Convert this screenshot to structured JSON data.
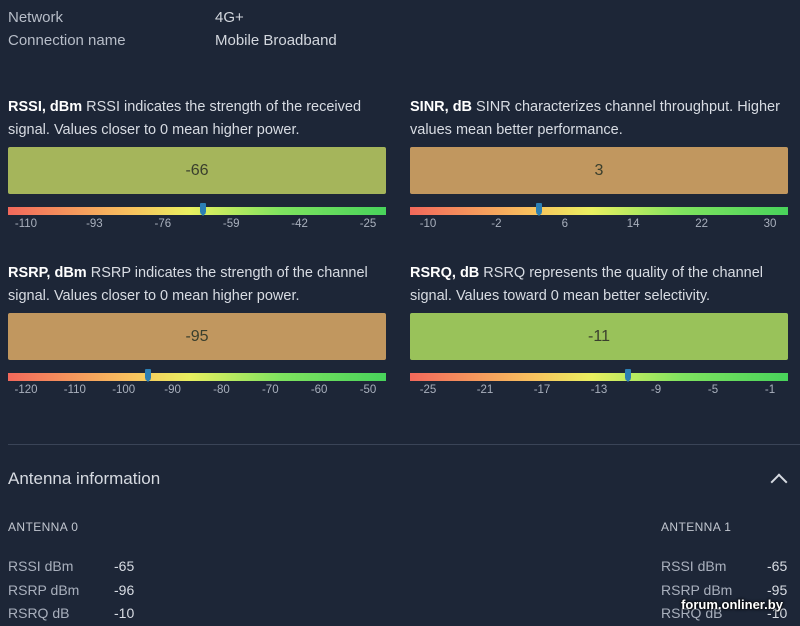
{
  "info": [
    {
      "label": "Network",
      "value": "4G+"
    },
    {
      "label": "Connection name",
      "value": "Mobile Broadband"
    }
  ],
  "metrics": [
    {
      "name": "RSSI, dBm",
      "description": " RSSI indicates the strength of the received signal. Values closer to 0 mean higher power.",
      "value": "-66",
      "box_color": "#a5b55b",
      "ticks": [
        "-110",
        "-93",
        "-76",
        "-59",
        "-42",
        "-25"
      ],
      "scale_min": -110,
      "scale_max": -25,
      "level": -66
    },
    {
      "name": "SINR, dB",
      "description": " SINR characterizes channel throughput. Higher values mean better performance.",
      "value": "3",
      "box_color": "#c1975f",
      "ticks": [
        "-10",
        "-2",
        "6",
        "14",
        "22",
        "30"
      ],
      "scale_min": -10,
      "scale_max": 30,
      "level": 3
    },
    {
      "name": "RSRP, dBm",
      "description": " RSRP indicates the strength of the channel signal. Values closer to 0 mean higher power.",
      "value": "-95",
      "box_color": "#c1975f",
      "ticks": [
        "-120",
        "-110",
        "-100",
        "-90",
        "-80",
        "-70",
        "-60",
        "-50"
      ],
      "scale_min": -120,
      "scale_max": -50,
      "level": -95
    },
    {
      "name": "RSRQ, dB",
      "description": " RSRQ represents the quality of the channel signal. Values toward 0 mean better selectivity.",
      "value": "-11",
      "box_color": "#99c25a",
      "ticks": [
        "-25",
        "-21",
        "-17",
        "-13",
        "-9",
        "-5",
        "-1"
      ],
      "scale_min": -25,
      "scale_max": -1,
      "level": -11
    }
  ],
  "antenna_section": {
    "title": "Antenna information",
    "collapse_icon": "chevron-up-icon"
  },
  "antennas": [
    {
      "title": "ANTENNA 0",
      "rows": [
        {
          "label": "RSSI dBm",
          "value": "-65"
        },
        {
          "label": "RSRP dBm",
          "value": "-96"
        },
        {
          "label": "RSRQ dB",
          "value": "-10"
        }
      ]
    },
    {
      "title": "ANTENNA 1",
      "rows": [
        {
          "label": "RSSI dBm",
          "value": "-65"
        },
        {
          "label": "RSRP dBm",
          "value": "-95"
        },
        {
          "label": "RSRQ dB",
          "value": "-10"
        }
      ]
    }
  ],
  "watermark": "forum.onliner.by"
}
